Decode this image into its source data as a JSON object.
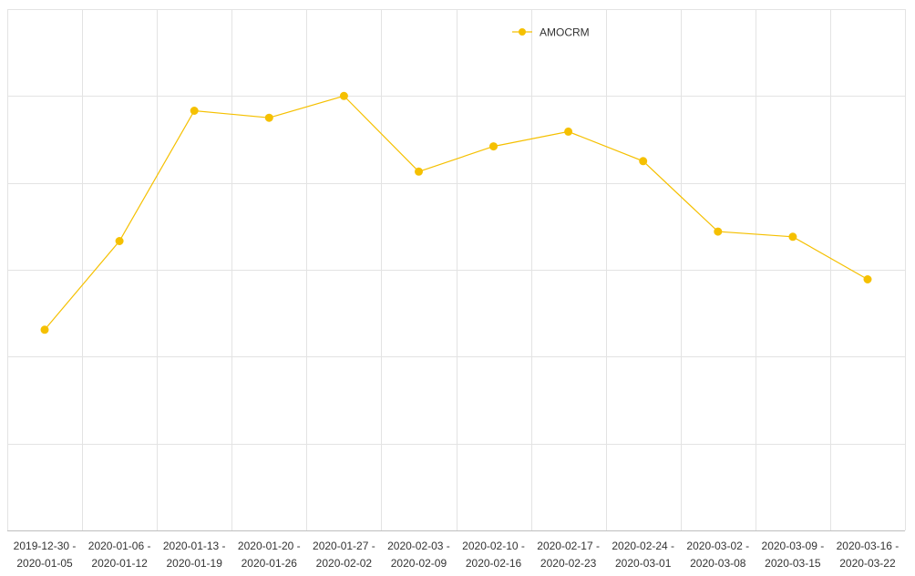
{
  "chart_data": {
    "type": "line",
    "categories": [
      [
        "2019-12-30 -",
        "2020-01-05"
      ],
      [
        "2020-01-06 -",
        "2020-01-12"
      ],
      [
        "2020-01-13 -",
        "2020-01-19"
      ],
      [
        "2020-01-20 -",
        "2020-01-26"
      ],
      [
        "2020-01-27 -",
        "2020-02-02"
      ],
      [
        "2020-02-03 -",
        "2020-02-09"
      ],
      [
        "2020-02-10 -",
        "2020-02-16"
      ],
      [
        "2020-02-17 -",
        "2020-02-23"
      ],
      [
        "2020-02-24 -",
        "2020-03-01"
      ],
      [
        "2020-03-02 -",
        "2020-03-08"
      ],
      [
        "2020-03-09 -",
        "2020-03-15"
      ],
      [
        "2020-03-16 -",
        "2020-03-22"
      ]
    ],
    "series": [
      {
        "name": "AMOCRM",
        "color": "#f5c000",
        "values": [
          2.31,
          3.33,
          4.83,
          4.75,
          5.0,
          4.13,
          4.42,
          4.59,
          4.25,
          3.44,
          3.38,
          2.89
        ]
      }
    ],
    "ylim": [
      0,
      6
    ],
    "y_grid_step": 1,
    "grid": true,
    "legend_position": "top-center",
    "y_tick_labels_visible": false
  }
}
